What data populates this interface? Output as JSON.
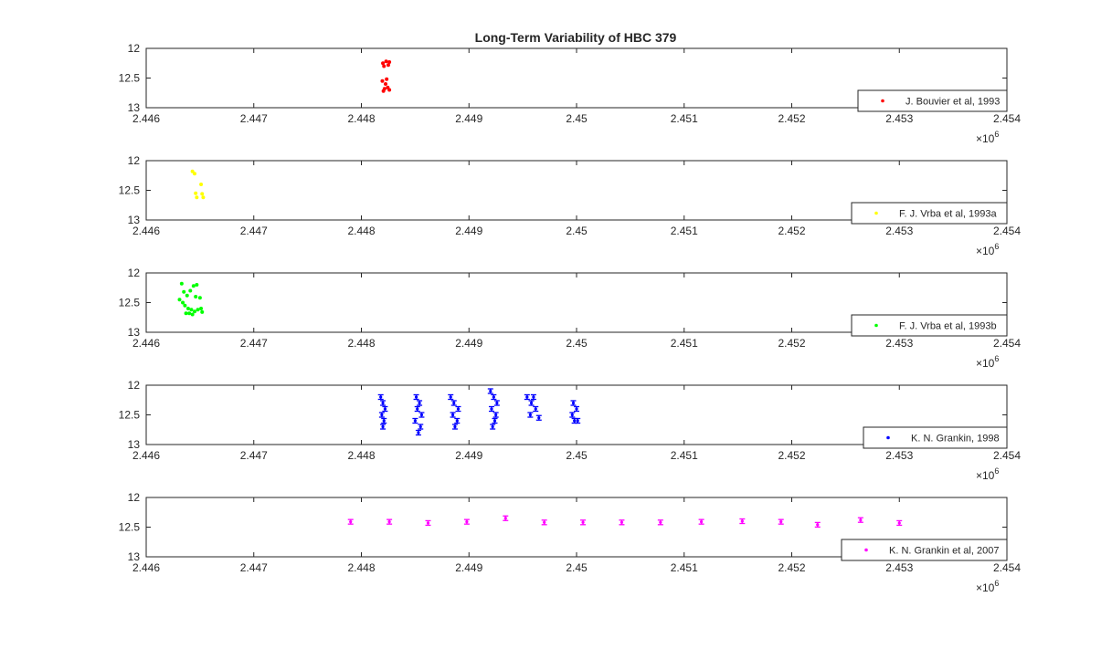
{
  "figure_title": "Long-Term Variability of HBC 379",
  "chart_data": [
    {
      "type": "scatter",
      "title": "Long-Term Variability of HBC 379",
      "xlim": [
        2446000,
        2454000
      ],
      "ylim": [
        12,
        13
      ],
      "y_reversed": true,
      "x_ticks": [
        "2.446",
        "2.447",
        "2.448",
        "2.449",
        "2.45",
        "2.451",
        "2.452",
        "2.453",
        "2.454"
      ],
      "y_ticks": [
        "12",
        "12.5",
        "13"
      ],
      "x_exponent": "×10",
      "x_exponent_power": "6",
      "legend_position": "bottom-right",
      "series": [
        {
          "name": "J. Bouvier et al, 1993",
          "color": "#ff0000",
          "error_bars": false,
          "points": [
            [
              2448200,
              12.25
            ],
            [
              2448230,
              12.22
            ],
            [
              2448260,
              12.23
            ],
            [
              2448210,
              12.3
            ],
            [
              2448250,
              12.28
            ],
            [
              2448195,
              12.55
            ],
            [
              2448235,
              12.52
            ],
            [
              2448215,
              12.68
            ],
            [
              2448245,
              12.66
            ],
            [
              2448205,
              12.72
            ],
            [
              2448260,
              12.7
            ],
            [
              2448225,
              12.6
            ]
          ]
        }
      ]
    },
    {
      "type": "scatter",
      "xlim": [
        2446000,
        2454000
      ],
      "ylim": [
        12,
        13
      ],
      "y_reversed": true,
      "x_ticks": [
        "2.446",
        "2.447",
        "2.448",
        "2.449",
        "2.45",
        "2.451",
        "2.452",
        "2.453",
        "2.454"
      ],
      "y_ticks": [
        "12",
        "12.5",
        "13"
      ],
      "x_exponent": "×10",
      "x_exponent_power": "6",
      "legend_position": "bottom-right",
      "series": [
        {
          "name": "F. J. Vrba et al, 1993a",
          "color": "#ffff00",
          "error_bars": false,
          "points": [
            [
              2446430,
              12.18
            ],
            [
              2446450,
              12.22
            ],
            [
              2446510,
              12.4
            ],
            [
              2446460,
              12.55
            ],
            [
              2446470,
              12.62
            ],
            [
              2446520,
              12.56
            ],
            [
              2446530,
              12.62
            ]
          ]
        }
      ]
    },
    {
      "type": "scatter",
      "xlim": [
        2446000,
        2454000
      ],
      "ylim": [
        12,
        13
      ],
      "y_reversed": true,
      "x_ticks": [
        "2.446",
        "2.447",
        "2.448",
        "2.449",
        "2.45",
        "2.451",
        "2.452",
        "2.453",
        "2.454"
      ],
      "y_ticks": [
        "12",
        "12.5",
        "13"
      ],
      "x_exponent": "×10",
      "x_exponent_power": "6",
      "legend_position": "bottom-right",
      "series": [
        {
          "name": "F. J. Vrba et al, 1993b",
          "color": "#00ff00",
          "error_bars": false,
          "points": [
            [
              2446330,
              12.18
            ],
            [
              2446350,
              12.32
            ],
            [
              2446380,
              12.38
            ],
            [
              2446410,
              12.3
            ],
            [
              2446440,
              12.22
            ],
            [
              2446470,
              12.2
            ],
            [
              2446500,
              12.42
            ],
            [
              2446340,
              12.5
            ],
            [
              2446360,
              12.55
            ],
            [
              2446390,
              12.6
            ],
            [
              2446420,
              12.62
            ],
            [
              2446450,
              12.65
            ],
            [
              2446370,
              12.68
            ],
            [
              2446400,
              12.68
            ],
            [
              2446430,
              12.7
            ],
            [
              2446480,
              12.62
            ],
            [
              2446510,
              12.6
            ],
            [
              2446520,
              12.66
            ],
            [
              2446310,
              12.45
            ],
            [
              2446460,
              12.4
            ]
          ]
        }
      ]
    },
    {
      "type": "scatter",
      "xlim": [
        2446000,
        2454000
      ],
      "ylim": [
        12,
        13
      ],
      "y_reversed": true,
      "x_ticks": [
        "2.446",
        "2.447",
        "2.448",
        "2.449",
        "2.45",
        "2.451",
        "2.452",
        "2.453",
        "2.454"
      ],
      "y_ticks": [
        "12",
        "12.5",
        "13"
      ],
      "x_exponent": "×10",
      "x_exponent_power": "6",
      "legend_position": "bottom-right",
      "series": [
        {
          "name": "K. N. Grankin, 1998",
          "color": "#0000ff",
          "error_bars": true,
          "points": [
            [
              2448180,
              12.2
            ],
            [
              2448200,
              12.3
            ],
            [
              2448220,
              12.4
            ],
            [
              2448190,
              12.5
            ],
            [
              2448210,
              12.6
            ],
            [
              2448200,
              12.7
            ],
            [
              2448510,
              12.2
            ],
            [
              2448540,
              12.3
            ],
            [
              2448520,
              12.4
            ],
            [
              2448560,
              12.5
            ],
            [
              2448500,
              12.6
            ],
            [
              2448550,
              12.7
            ],
            [
              2448530,
              12.8
            ],
            [
              2448830,
              12.2
            ],
            [
              2448860,
              12.3
            ],
            [
              2448900,
              12.4
            ],
            [
              2448850,
              12.5
            ],
            [
              2448890,
              12.6
            ],
            [
              2448870,
              12.7
            ],
            [
              2449200,
              12.1
            ],
            [
              2449230,
              12.2
            ],
            [
              2449260,
              12.3
            ],
            [
              2449210,
              12.4
            ],
            [
              2449250,
              12.5
            ],
            [
              2449240,
              12.6
            ],
            [
              2449220,
              12.7
            ],
            [
              2449540,
              12.2
            ],
            [
              2449580,
              12.3
            ],
            [
              2449620,
              12.4
            ],
            [
              2449570,
              12.5
            ],
            [
              2449650,
              12.55
            ],
            [
              2449600,
              12.2
            ],
            [
              2449970,
              12.3
            ],
            [
              2450000,
              12.4
            ],
            [
              2449960,
              12.5
            ],
            [
              2450010,
              12.6
            ],
            [
              2449980,
              12.6
            ]
          ]
        }
      ]
    },
    {
      "type": "scatter",
      "xlim": [
        2446000,
        2454000
      ],
      "ylim": [
        12,
        13
      ],
      "y_reversed": true,
      "x_ticks": [
        "2.446",
        "2.447",
        "2.448",
        "2.449",
        "2.45",
        "2.451",
        "2.452",
        "2.453",
        "2.454"
      ],
      "y_ticks": [
        "12",
        "12.5",
        "13"
      ],
      "x_exponent": "×10",
      "x_exponent_power": "6",
      "legend_position": "bottom-right",
      "series": [
        {
          "name": "K. N. Grankin et al, 2007",
          "color": "#ff00ff",
          "error_bars": true,
          "points": [
            [
              2447900,
              12.41
            ],
            [
              2448260,
              12.41
            ],
            [
              2448620,
              12.43
            ],
            [
              2448980,
              12.41
            ],
            [
              2449340,
              12.35
            ],
            [
              2449700,
              12.42
            ],
            [
              2450060,
              12.42
            ],
            [
              2450420,
              12.42
            ],
            [
              2450780,
              12.42
            ],
            [
              2451160,
              12.41
            ],
            [
              2451540,
              12.4
            ],
            [
              2451900,
              12.41
            ],
            [
              2452240,
              12.46
            ],
            [
              2452640,
              12.38
            ],
            [
              2453000,
              12.43
            ]
          ]
        }
      ]
    }
  ]
}
